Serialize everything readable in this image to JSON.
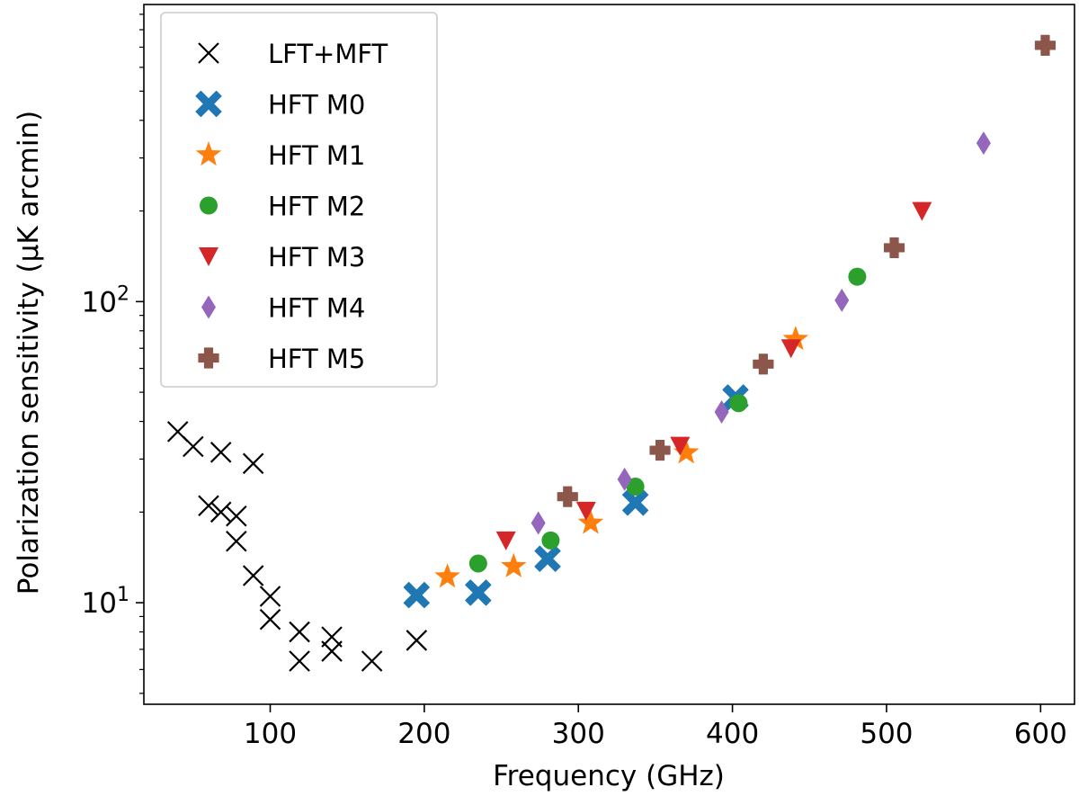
{
  "chart_data": {
    "type": "scatter",
    "xlabel": "Frequency (GHz)",
    "ylabel": "Polarization sensitivity (μK arcmin)",
    "xscale": "linear",
    "yscale": "log",
    "xlim": [
      18,
      622
    ],
    "ylim": [
      4.6,
      970
    ],
    "xticks": [
      100,
      200,
      300,
      400,
      500,
      600
    ],
    "xtick_labels": [
      "100",
      "200",
      "300",
      "400",
      "500",
      "600"
    ],
    "yticks_major": [
      10,
      100
    ],
    "ytick_labels_major": [
      {
        "base": "10",
        "exp": "1"
      },
      {
        "base": "10",
        "exp": "2"
      }
    ],
    "yticks_minor": [
      5,
      6,
      7,
      8,
      9,
      20,
      30,
      40,
      50,
      60,
      70,
      80,
      90,
      200,
      300,
      400,
      500,
      600,
      700,
      800,
      900
    ],
    "grid": false,
    "legend_position": "upper-left",
    "series": [
      {
        "name": "LFT+MFT",
        "marker": "x",
        "color": "#000000",
        "x": [
          40,
          50,
          60,
          68,
          78,
          89,
          100,
          119,
          140,
          166,
          195,
          68,
          78,
          89,
          100,
          119,
          140
        ],
        "y": [
          37,
          33,
          21,
          31.6,
          19.4,
          29,
          10.5,
          8,
          7.7,
          6.4,
          7.5,
          20,
          16,
          12.3,
          8.8,
          6.4,
          6.9
        ]
      },
      {
        "name": "HFT M0",
        "marker": "X",
        "color": "#1f77b4",
        "x": [
          195,
          235,
          280,
          337,
          402
        ],
        "y": [
          10.6,
          10.8,
          14,
          21.5,
          48
        ]
      },
      {
        "name": "HFT M1",
        "marker": "star",
        "color": "#ff7f0e",
        "x": [
          215,
          258,
          308,
          370,
          441
        ],
        "y": [
          12.2,
          13.2,
          18.4,
          31.5,
          75
        ]
      },
      {
        "name": "HFT M2",
        "marker": "circle",
        "color": "#2ca02c",
        "x": [
          235,
          282,
          337,
          404,
          481
        ],
        "y": [
          13.5,
          16.1,
          24.3,
          46,
          121
        ]
      },
      {
        "name": "HFT M3",
        "marker": "triangle-down",
        "color": "#d62728",
        "x": [
          253,
          305,
          366,
          438,
          523
        ],
        "y": [
          16.1,
          20.2,
          33.2,
          70,
          200
        ]
      },
      {
        "name": "HFT M4",
        "marker": "thin-diamond",
        "color": "#9467bd",
        "x": [
          274,
          330,
          393,
          471,
          563
        ],
        "y": [
          18.4,
          25.7,
          43,
          101,
          336
        ]
      },
      {
        "name": "HFT M5",
        "marker": "plus-filled",
        "color": "#8c564b",
        "x": [
          293,
          353,
          420,
          505,
          603
        ],
        "y": [
          22.5,
          32.1,
          62,
          151,
          710
        ]
      }
    ]
  }
}
